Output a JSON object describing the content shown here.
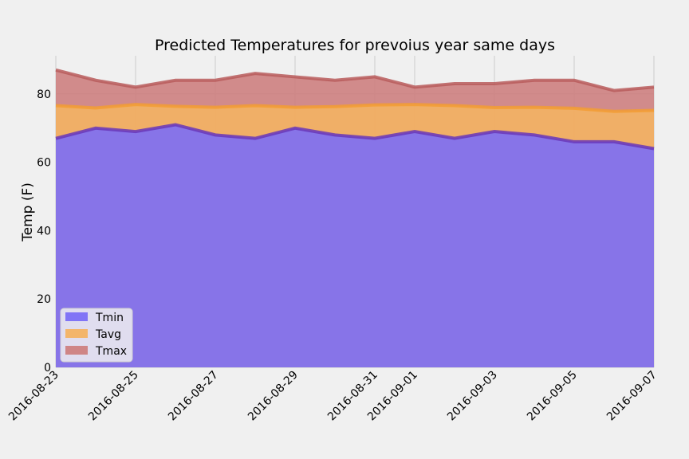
{
  "chart_data": {
    "type": "area",
    "title": "Predicted Temperatures for prevoius year same days",
    "xlabel": "",
    "ylabel": "Temp (F)",
    "ylim": [
      0,
      90
    ],
    "y_ticks": [
      "0",
      "20",
      "40",
      "60",
      "80"
    ],
    "x": [
      "2016-08-23",
      "2016-08-24",
      "2016-08-25",
      "2016-08-26",
      "2016-08-27",
      "2016-08-28",
      "2016-08-29",
      "2016-08-30",
      "2016-08-31",
      "2016-09-01",
      "2016-09-02",
      "2016-09-03",
      "2016-09-04",
      "2016-09-05",
      "2016-09-06",
      "2016-09-07"
    ],
    "x_tick_labels": [
      "2016-08-23",
      "2016-08-25",
      "2016-08-27",
      "2016-08-29",
      "2016-08-31",
      "2016-09-01",
      "2016-09-03",
      "2016-09-05",
      "2016-09-07"
    ],
    "grid": true,
    "legend_position": "lower-left",
    "series": [
      {
        "name": "Tmin",
        "color": "#7b6ef6",
        "line_color": "#6a37b8",
        "values": [
          67,
          70,
          69,
          71,
          68,
          67,
          70,
          68,
          67,
          69,
          67,
          69,
          68,
          66,
          66,
          64
        ]
      },
      {
        "name": "Tavg",
        "color": "#f3b263",
        "line_color": "#f29c34",
        "values": [
          76.6,
          75.9,
          76.9,
          76.4,
          76.1,
          76.6,
          76.1,
          76.3,
          76.8,
          76.9,
          76.6,
          76.0,
          76.1,
          75.8,
          74.9,
          75.2
        ]
      },
      {
        "name": "Tmax",
        "color": "#cd7f7f",
        "line_color": "#b85c5c",
        "values": [
          87,
          84,
          82,
          84,
          84,
          86,
          85,
          84,
          85,
          82,
          83,
          83,
          84,
          84,
          81,
          82
        ]
      }
    ]
  }
}
